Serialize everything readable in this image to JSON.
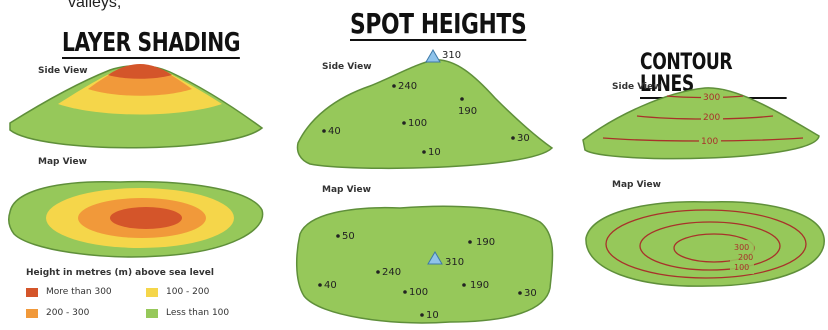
{
  "caption": "valleys,",
  "layer_shading": {
    "title": "LAYER SHADING",
    "side_view_label": "Side View",
    "map_view_label": "Map View",
    "legend_title": "Height in metres (m) above sea level",
    "legend": [
      {
        "label": "More than 300",
        "color": "#d4552a"
      },
      {
        "label": "100 - 200",
        "color": "#f5d64a"
      },
      {
        "label": "200 - 300",
        "color": "#f1993a"
      },
      {
        "label": "Less than 100",
        "color": "#96c85a"
      }
    ]
  },
  "spot_heights": {
    "title": "SPOT HEIGHTS",
    "side_view_label": "Side View",
    "map_view_label": "Map View",
    "side_points": [
      "310",
      "240",
      "190",
      "40",
      "100",
      "30",
      "10"
    ],
    "map_points": [
      "50",
      "190",
      "240",
      "310",
      "40",
      "100",
      "190",
      "30",
      "10"
    ]
  },
  "contour_lines": {
    "title": "CONTOUR LINES",
    "side_view_label": "Side View",
    "map_view_label": "Map View",
    "side_labels": [
      "300",
      "200",
      "100"
    ],
    "map_labels": [
      "300",
      "200",
      "100"
    ]
  },
  "colors": {
    "green": "#96c85a",
    "green_edge": "#5f8f3a",
    "yellow": "#f5d64a",
    "orange": "#f1993a",
    "red": "#d4552a",
    "contour": "#a8322a",
    "peak_triangle": "#8fc3ea"
  }
}
